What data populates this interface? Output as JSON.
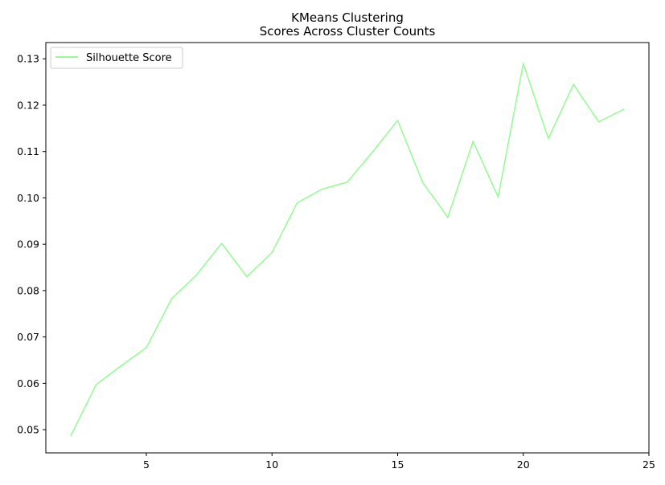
{
  "chart_data": {
    "type": "line",
    "title_lines": [
      "KMeans Clustering",
      "Scores Across Cluster Counts"
    ],
    "xlabel": "",
    "ylabel": "",
    "xlim": [
      1.0,
      25.0
    ],
    "ylim": [
      0.045,
      0.1335
    ],
    "xticks": [
      5,
      10,
      15,
      20,
      25
    ],
    "yticks": [
      0.05,
      0.06,
      0.07,
      0.08,
      0.09,
      0.1,
      0.11,
      0.12,
      0.13
    ],
    "ytick_labels": [
      "0.05",
      "0.06",
      "0.07",
      "0.08",
      "0.09",
      "0.10",
      "0.11",
      "0.12",
      "0.13"
    ],
    "grid": false,
    "legend_position": "top-left",
    "series": [
      {
        "name": "Silhouette Score",
        "color": "#98fb98",
        "x": [
          2,
          3,
          4,
          5,
          6,
          7,
          8,
          9,
          10,
          11,
          12,
          13,
          14,
          15,
          16,
          17,
          18,
          19,
          20,
          21,
          22,
          23,
          24
        ],
        "y": [
          0.0488,
          0.0597,
          0.0638,
          0.0677,
          0.0782,
          0.0834,
          0.0902,
          0.083,
          0.0882,
          0.0989,
          0.1019,
          0.1034,
          0.1099,
          0.1167,
          0.1033,
          0.0958,
          0.1122,
          0.1002,
          0.129,
          0.1128,
          0.1245,
          0.1164,
          0.1191
        ]
      }
    ]
  }
}
